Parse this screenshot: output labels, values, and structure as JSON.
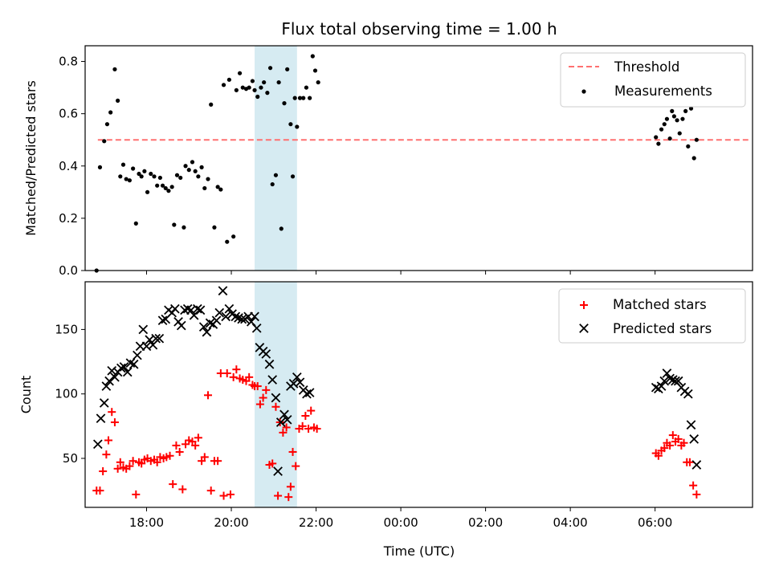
{
  "chart_data": {
    "title": "Flux total observing time = 1.00 h",
    "xlabel": "Time (UTC)",
    "x_unit": "hours (UTC clock, continuing past 24:00 into next day)",
    "xlim": [
      16.55,
      32.3
    ],
    "xticks": [
      {
        "value": 18,
        "label": "18:00"
      },
      {
        "value": 20,
        "label": "20:00"
      },
      {
        "value": 22,
        "label": "22:00"
      },
      {
        "value": 24,
        "label": "00:00"
      },
      {
        "value": 26,
        "label": "02:00"
      },
      {
        "value": 28,
        "label": "04:00"
      },
      {
        "value": 30,
        "label": "06:00"
      }
    ],
    "highlight_span": {
      "from": 20.55,
      "to": 21.55,
      "color": "#add8e6"
    },
    "top": {
      "type": "scatter",
      "ylabel": "Matched/Predicted stars",
      "ylim": [
        0,
        0.86
      ],
      "yticks": [
        {
          "value": 0.0,
          "label": "0.0"
        },
        {
          "value": 0.2,
          "label": "0.2"
        },
        {
          "value": 0.4,
          "label": "0.4"
        },
        {
          "value": 0.6,
          "label": "0.6"
        },
        {
          "value": 0.8,
          "label": "0.8"
        }
      ],
      "threshold": {
        "name": "Threshold",
        "value": 0.5,
        "x": [
          16.85,
          32.2
        ],
        "color": "#ff7070"
      },
      "measurements": {
        "name": "Measurements",
        "color": "#000000",
        "points": [
          [
            16.82,
            0.0
          ],
          [
            16.9,
            0.395
          ],
          [
            17.0,
            0.495
          ],
          [
            17.07,
            0.56
          ],
          [
            17.15,
            0.605
          ],
          [
            17.25,
            0.77
          ],
          [
            17.32,
            0.65
          ],
          [
            17.38,
            0.36
          ],
          [
            17.45,
            0.405
          ],
          [
            17.52,
            0.35
          ],
          [
            17.6,
            0.345
          ],
          [
            17.68,
            0.39
          ],
          [
            17.75,
            0.18
          ],
          [
            17.82,
            0.37
          ],
          [
            17.88,
            0.36
          ],
          [
            17.95,
            0.38
          ],
          [
            18.02,
            0.3
          ],
          [
            18.1,
            0.37
          ],
          [
            18.18,
            0.36
          ],
          [
            18.25,
            0.325
          ],
          [
            18.32,
            0.355
          ],
          [
            18.38,
            0.325
          ],
          [
            18.45,
            0.315
          ],
          [
            18.52,
            0.305
          ],
          [
            18.6,
            0.32
          ],
          [
            18.65,
            0.175
          ],
          [
            18.72,
            0.365
          ],
          [
            18.8,
            0.355
          ],
          [
            18.88,
            0.165
          ],
          [
            18.92,
            0.4
          ],
          [
            19.0,
            0.385
          ],
          [
            19.08,
            0.415
          ],
          [
            19.15,
            0.38
          ],
          [
            19.22,
            0.36
          ],
          [
            19.3,
            0.395
          ],
          [
            19.37,
            0.315
          ],
          [
            19.45,
            0.35
          ],
          [
            19.52,
            0.635
          ],
          [
            19.6,
            0.165
          ],
          [
            19.68,
            0.32
          ],
          [
            19.75,
            0.31
          ],
          [
            19.82,
            0.71
          ],
          [
            19.9,
            0.11
          ],
          [
            19.95,
            0.73
          ],
          [
            20.05,
            0.13
          ],
          [
            20.12,
            0.69
          ],
          [
            20.2,
            0.755
          ],
          [
            20.27,
            0.7
          ],
          [
            20.35,
            0.695
          ],
          [
            20.42,
            0.7
          ],
          [
            20.5,
            0.725
          ],
          [
            20.55,
            0.69
          ],
          [
            20.62,
            0.665
          ],
          [
            20.7,
            0.7
          ],
          [
            20.77,
            0.72
          ],
          [
            20.85,
            0.68
          ],
          [
            20.92,
            0.775
          ],
          [
            20.97,
            0.33
          ],
          [
            21.05,
            0.365
          ],
          [
            21.12,
            0.72
          ],
          [
            21.18,
            0.16
          ],
          [
            21.25,
            0.64
          ],
          [
            21.32,
            0.77
          ],
          [
            21.4,
            0.56
          ],
          [
            21.45,
            0.36
          ],
          [
            21.5,
            0.66
          ],
          [
            21.55,
            0.55
          ],
          [
            21.62,
            0.66
          ],
          [
            21.7,
            0.66
          ],
          [
            21.77,
            0.7
          ],
          [
            21.85,
            0.66
          ],
          [
            21.92,
            0.82
          ],
          [
            21.98,
            0.765
          ],
          [
            22.05,
            0.72
          ],
          [
            30.02,
            0.51
          ],
          [
            30.08,
            0.485
          ],
          [
            30.15,
            0.54
          ],
          [
            30.22,
            0.56
          ],
          [
            30.28,
            0.58
          ],
          [
            30.35,
            0.505
          ],
          [
            30.4,
            0.61
          ],
          [
            30.45,
            0.59
          ],
          [
            30.52,
            0.575
          ],
          [
            30.58,
            0.525
          ],
          [
            30.65,
            0.58
          ],
          [
            30.72,
            0.61
          ],
          [
            30.78,
            0.475
          ],
          [
            30.85,
            0.62
          ],
          [
            30.92,
            0.43
          ],
          [
            30.98,
            0.5
          ]
        ]
      }
    },
    "bottom": {
      "type": "scatter",
      "ylabel": "Count",
      "ylim": [
        12,
        187
      ],
      "yticks": [
        {
          "value": 50,
          "label": "50"
        },
        {
          "value": 100,
          "label": "100"
        },
        {
          "value": 150,
          "label": "150"
        }
      ],
      "series": [
        {
          "name": "Matched stars",
          "marker": "plus",
          "color": "#ff0000",
          "points": [
            [
              16.82,
              25
            ],
            [
              16.9,
              25
            ],
            [
              16.97,
              40
            ],
            [
              17.05,
              53
            ],
            [
              17.1,
              64
            ],
            [
              17.18,
              86
            ],
            [
              17.25,
              78
            ],
            [
              17.32,
              42
            ],
            [
              17.38,
              47
            ],
            [
              17.45,
              43
            ],
            [
              17.52,
              42
            ],
            [
              17.6,
              44
            ],
            [
              17.68,
              48
            ],
            [
              17.75,
              22
            ],
            [
              17.82,
              47
            ],
            [
              17.88,
              46
            ],
            [
              17.95,
              49
            ],
            [
              18.02,
              50
            ],
            [
              18.1,
              48
            ],
            [
              18.18,
              49
            ],
            [
              18.25,
              47
            ],
            [
              18.32,
              51
            ],
            [
              18.4,
              50
            ],
            [
              18.47,
              51
            ],
            [
              18.55,
              52
            ],
            [
              18.62,
              30
            ],
            [
              18.7,
              60
            ],
            [
              18.78,
              55
            ],
            [
              18.85,
              26
            ],
            [
              18.92,
              61
            ],
            [
              19.0,
              64
            ],
            [
              19.08,
              63
            ],
            [
              19.15,
              60
            ],
            [
              19.22,
              66
            ],
            [
              19.3,
              48
            ],
            [
              19.37,
              51
            ],
            [
              19.45,
              99
            ],
            [
              19.52,
              25
            ],
            [
              19.6,
              48
            ],
            [
              19.68,
              48
            ],
            [
              19.75,
              116
            ],
            [
              19.82,
              21
            ],
            [
              19.9,
              116
            ],
            [
              19.98,
              22
            ],
            [
              20.05,
              113
            ],
            [
              20.12,
              119
            ],
            [
              20.2,
              112
            ],
            [
              20.27,
              111
            ],
            [
              20.35,
              110
            ],
            [
              20.42,
              113
            ],
            [
              20.5,
              107
            ],
            [
              20.55,
              106
            ],
            [
              20.62,
              106
            ],
            [
              20.68,
              92
            ],
            [
              20.75,
              97
            ],
            [
              20.82,
              103
            ],
            [
              20.9,
              45
            ],
            [
              20.97,
              46
            ],
            [
              21.05,
              90
            ],
            [
              21.1,
              21
            ],
            [
              21.15,
              78
            ],
            [
              21.22,
              70
            ],
            [
              21.3,
              74
            ],
            [
              21.35,
              20
            ],
            [
              21.4,
              28
            ],
            [
              21.45,
              55
            ],
            [
              21.52,
              44
            ],
            [
              21.6,
              73
            ],
            [
              21.68,
              75
            ],
            [
              21.75,
              83
            ],
            [
              21.82,
              73
            ],
            [
              21.88,
              87
            ],
            [
              21.95,
              74
            ],
            [
              22.02,
              73
            ],
            [
              30.02,
              54
            ],
            [
              30.08,
              52
            ],
            [
              30.15,
              56
            ],
            [
              30.22,
              58
            ],
            [
              30.28,
              62
            ],
            [
              30.35,
              60
            ],
            [
              30.42,
              68
            ],
            [
              30.48,
              63
            ],
            [
              30.55,
              65
            ],
            [
              30.62,
              60
            ],
            [
              30.68,
              62
            ],
            [
              30.75,
              47
            ],
            [
              30.82,
              47
            ],
            [
              30.9,
              29
            ],
            [
              30.98,
              22
            ]
          ]
        },
        {
          "name": "Predicted stars",
          "marker": "x",
          "color": "#000000",
          "points": [
            [
              16.85,
              61
            ],
            [
              16.92,
              81
            ],
            [
              17.0,
              93
            ],
            [
              17.05,
              106
            ],
            [
              17.12,
              110
            ],
            [
              17.18,
              118
            ],
            [
              17.25,
              113
            ],
            [
              17.32,
              117
            ],
            [
              17.4,
              120
            ],
            [
              17.47,
              121
            ],
            [
              17.55,
              117
            ],
            [
              17.62,
              124
            ],
            [
              17.7,
              123
            ],
            [
              17.78,
              130
            ],
            [
              17.85,
              137
            ],
            [
              17.92,
              150
            ],
            [
              18.0,
              137
            ],
            [
              18.07,
              142
            ],
            [
              18.15,
              138
            ],
            [
              18.22,
              143
            ],
            [
              18.3,
              143
            ],
            [
              18.38,
              157
            ],
            [
              18.45,
              158
            ],
            [
              18.52,
              165
            ],
            [
              18.6,
              163
            ],
            [
              18.67,
              166
            ],
            [
              18.75,
              156
            ],
            [
              18.82,
              153
            ],
            [
              18.9,
              165
            ],
            [
              18.97,
              166
            ],
            [
              19.05,
              165
            ],
            [
              19.12,
              161
            ],
            [
              19.2,
              166
            ],
            [
              19.27,
              165
            ],
            [
              19.35,
              152
            ],
            [
              19.42,
              148
            ],
            [
              19.5,
              155
            ],
            [
              19.57,
              154
            ],
            [
              19.65,
              157
            ],
            [
              19.72,
              163
            ],
            [
              19.8,
              180
            ],
            [
              19.87,
              160
            ],
            [
              19.95,
              166
            ],
            [
              20.02,
              162
            ],
            [
              20.1,
              160
            ],
            [
              20.17,
              159
            ],
            [
              20.25,
              158
            ],
            [
              20.32,
              158
            ],
            [
              20.4,
              160
            ],
            [
              20.47,
              156
            ],
            [
              20.55,
              160
            ],
            [
              20.6,
              151
            ],
            [
              20.67,
              136
            ],
            [
              20.75,
              133
            ],
            [
              20.82,
              131
            ],
            [
              20.9,
              123
            ],
            [
              20.97,
              111
            ],
            [
              21.05,
              97
            ],
            [
              21.1,
              40
            ],
            [
              21.17,
              78
            ],
            [
              21.25,
              84
            ],
            [
              21.32,
              80
            ],
            [
              21.4,
              106
            ],
            [
              21.47,
              108
            ],
            [
              21.55,
              113
            ],
            [
              21.62,
              109
            ],
            [
              21.7,
              103
            ],
            [
              21.78,
              100
            ],
            [
              21.85,
              101
            ],
            [
              30.02,
              105
            ],
            [
              30.08,
              104
            ],
            [
              30.15,
              106
            ],
            [
              30.22,
              110
            ],
            [
              30.28,
              116
            ],
            [
              30.35,
              112
            ],
            [
              30.42,
              111
            ],
            [
              30.48,
              110
            ],
            [
              30.55,
              110
            ],
            [
              30.62,
              105
            ],
            [
              30.7,
              102
            ],
            [
              30.78,
              100
            ],
            [
              30.85,
              76
            ],
            [
              30.92,
              65
            ],
            [
              30.98,
              45
            ]
          ]
        }
      ]
    }
  }
}
